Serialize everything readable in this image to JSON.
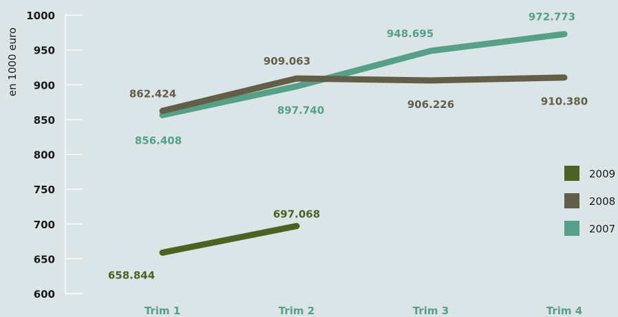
{
  "chart_data": {
    "type": "line",
    "ylabel": "en 1000 euro",
    "xlabel": "",
    "title": "",
    "categories": [
      "Trim 1",
      "Trim 2",
      "Trim 3",
      "Trim 4"
    ],
    "ylim": [
      600,
      1000
    ],
    "yticks": [
      1000,
      950,
      900,
      850,
      800,
      750,
      700,
      650,
      600
    ],
    "legend_position": "right",
    "grid": false,
    "series": [
      {
        "name": "2009",
        "color": "#4a6322",
        "values": [
          658.844,
          697.068,
          null,
          null
        ],
        "labels": [
          "658.844",
          "697.068",
          "",
          ""
        ]
      },
      {
        "name": "2008",
        "color": "#625e48",
        "values": [
          862.424,
          909.063,
          906.226,
          910.38
        ],
        "labels": [
          "862.424",
          "909.063",
          "906.226",
          "910.380"
        ]
      },
      {
        "name": "2007",
        "color": "#55a086",
        "values": [
          856.408,
          897.74,
          948.695,
          972.773
        ],
        "labels": [
          "856.408",
          "897.740",
          "948.695",
          "972.773"
        ]
      }
    ],
    "category_label_color": "#55a086",
    "axis_text_color": "#1a1a1a",
    "tick_color": "#ffffff"
  }
}
